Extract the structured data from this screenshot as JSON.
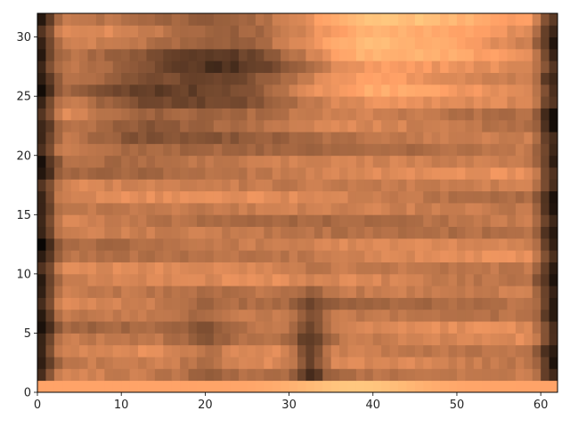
{
  "chart_data": {
    "type": "heatmap",
    "colormap": "copper",
    "title": "",
    "xlabel": "",
    "ylabel": "",
    "xlim": [
      0,
      62
    ],
    "ylim": [
      0,
      32
    ],
    "x_ticks": [
      0,
      10,
      20,
      30,
      40,
      50,
      60
    ],
    "y_ticks": [
      0,
      5,
      10,
      15,
      20,
      25,
      30
    ],
    "x_tick_labels": [
      "0",
      "10",
      "20",
      "30",
      "40",
      "50",
      "60"
    ],
    "y_tick_labels": [
      "0",
      "5",
      "10",
      "15",
      "20",
      "25",
      "30"
    ],
    "grid": false,
    "legend": "none",
    "value_range": [
      0,
      1
    ],
    "description_of_values": "32 rows x 62 columns of normalized intensity; bright band at row 0, dark columns at both edges, dark blob near x 10-30 y 22-32, bright region x 33-60 y 26-32, dark vertical streak near x 30-35 y 0-8"
  }
}
